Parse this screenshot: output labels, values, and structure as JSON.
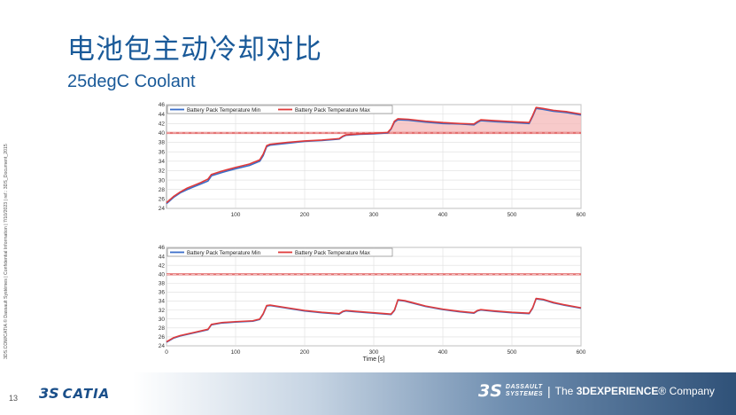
{
  "slide": {
    "title": "电池包主动冷却对比",
    "subtitle": "25degC  Coolant",
    "page_number": "13",
    "sidebar_text": "3DS.COM/CATIA © Dassault Systèmes | Confidential Information | 7/10/2023 | ref.: 3DS_Document_2015",
    "left_logo": {
      "mark": "3S",
      "word": "CATIA"
    },
    "right_logo": {
      "mark": "3S",
      "brand_line1": "DASSAULT",
      "brand_line2": "SYSTEMES",
      "separator": "|",
      "tagline_prefix": "The ",
      "tagline_bold": "3DEXPERIENCE",
      "tagline_suffix": "® Company"
    }
  },
  "chart_data": [
    {
      "type": "line",
      "xlim": [
        0,
        600
      ],
      "ylim": [
        24,
        46
      ],
      "x_ticks": [
        100,
        200,
        300,
        400,
        500,
        600
      ],
      "y_ticks": [
        24,
        26,
        28,
        30,
        32,
        34,
        36,
        38,
        40,
        42,
        44,
        46
      ],
      "xlabel": "",
      "ylabel": "",
      "grid": true,
      "legend_position": "top-left",
      "threshold": 40,
      "fill_above_threshold": true,
      "series": [
        {
          "name": "Battery Pack Temperature Min",
          "color": "#3a6ec9",
          "x": [
            0,
            10,
            20,
            30,
            40,
            50,
            60,
            65,
            80,
            100,
            120,
            135,
            140,
            145,
            150,
            175,
            200,
            225,
            250,
            255,
            260,
            280,
            300,
            320,
            325,
            330,
            335,
            350,
            375,
            400,
            425,
            445,
            450,
            455,
            475,
            500,
            525,
            530,
            535,
            545,
            560,
            580,
            600
          ],
          "y": [
            25.0,
            26.3,
            27.3,
            28.0,
            28.6,
            29.2,
            29.8,
            30.9,
            31.6,
            32.4,
            33.1,
            34.0,
            35.2,
            37.1,
            37.4,
            37.8,
            38.2,
            38.4,
            38.7,
            39.2,
            39.5,
            39.7,
            39.8,
            40.0,
            40.8,
            42.3,
            42.8,
            42.7,
            42.3,
            42.0,
            41.9,
            41.7,
            42.2,
            42.6,
            42.4,
            42.2,
            42.0,
            43.5,
            45.2,
            45.0,
            44.6,
            44.3,
            43.8
          ]
        },
        {
          "name": "Battery Pack Temperature Max",
          "color": "#e03a3a",
          "x": [
            0,
            10,
            20,
            30,
            40,
            50,
            60,
            65,
            80,
            100,
            120,
            135,
            140,
            145,
            150,
            175,
            200,
            225,
            250,
            255,
            260,
            280,
            300,
            320,
            325,
            330,
            335,
            350,
            375,
            400,
            425,
            445,
            450,
            455,
            475,
            500,
            525,
            530,
            535,
            545,
            560,
            580,
            600
          ],
          "y": [
            25.2,
            26.5,
            27.5,
            28.3,
            28.9,
            29.5,
            30.2,
            31.2,
            31.9,
            32.7,
            33.4,
            34.3,
            35.5,
            37.3,
            37.6,
            38.0,
            38.3,
            38.5,
            38.8,
            39.3,
            39.6,
            39.8,
            39.9,
            40.1,
            40.9,
            42.5,
            43.0,
            42.9,
            42.5,
            42.2,
            42.0,
            41.9,
            42.4,
            42.8,
            42.6,
            42.4,
            42.2,
            43.7,
            45.4,
            45.2,
            44.8,
            44.5,
            44.0
          ]
        }
      ]
    },
    {
      "type": "line",
      "xlim": [
        0,
        600
      ],
      "ylim": [
        24,
        46
      ],
      "x_ticks": [
        0,
        100,
        200,
        300,
        400,
        500,
        600
      ],
      "y_ticks": [
        24,
        26,
        28,
        30,
        32,
        34,
        36,
        38,
        40,
        42,
        44,
        46
      ],
      "xlabel": "Time [s]",
      "ylabel": "",
      "grid": true,
      "legend_position": "top-left",
      "threshold": 40,
      "fill_above_threshold": false,
      "series": [
        {
          "name": "Battery Pack Temperature Min",
          "color": "#3a6ec9",
          "x": [
            0,
            10,
            20,
            40,
            60,
            65,
            80,
            100,
            125,
            135,
            140,
            145,
            150,
            175,
            200,
            225,
            250,
            255,
            260,
            275,
            300,
            325,
            330,
            335,
            345,
            360,
            375,
            400,
            425,
            445,
            450,
            455,
            475,
            500,
            525,
            530,
            535,
            545,
            560,
            575,
            600
          ],
          "y": [
            24.8,
            25.7,
            26.2,
            26.9,
            27.6,
            28.7,
            29.1,
            29.3,
            29.5,
            29.9,
            31.1,
            32.9,
            33.0,
            32.4,
            31.8,
            31.4,
            31.1,
            31.6,
            31.8,
            31.6,
            31.3,
            31.0,
            31.9,
            34.2,
            34.0,
            33.4,
            32.8,
            32.1,
            31.6,
            31.3,
            31.8,
            32.0,
            31.7,
            31.4,
            31.2,
            32.4,
            34.5,
            34.3,
            33.6,
            33.1,
            32.4
          ]
        },
        {
          "name": "Battery Pack Temperature Max",
          "color": "#e03a3a",
          "x": [
            0,
            10,
            20,
            40,
            60,
            65,
            80,
            100,
            125,
            135,
            140,
            145,
            150,
            175,
            200,
            225,
            250,
            255,
            260,
            275,
            300,
            325,
            330,
            335,
            345,
            360,
            375,
            400,
            425,
            445,
            450,
            455,
            475,
            500,
            525,
            530,
            535,
            545,
            560,
            575,
            600
          ],
          "y": [
            24.9,
            25.8,
            26.3,
            27.0,
            27.7,
            28.8,
            29.2,
            29.4,
            29.6,
            30.0,
            31.2,
            33.0,
            33.1,
            32.5,
            31.9,
            31.5,
            31.2,
            31.7,
            31.9,
            31.7,
            31.4,
            31.1,
            32.0,
            34.3,
            34.1,
            33.5,
            32.9,
            32.2,
            31.7,
            31.4,
            31.9,
            32.1,
            31.8,
            31.5,
            31.3,
            32.5,
            34.6,
            34.4,
            33.7,
            33.2,
            32.5
          ]
        }
      ]
    }
  ]
}
